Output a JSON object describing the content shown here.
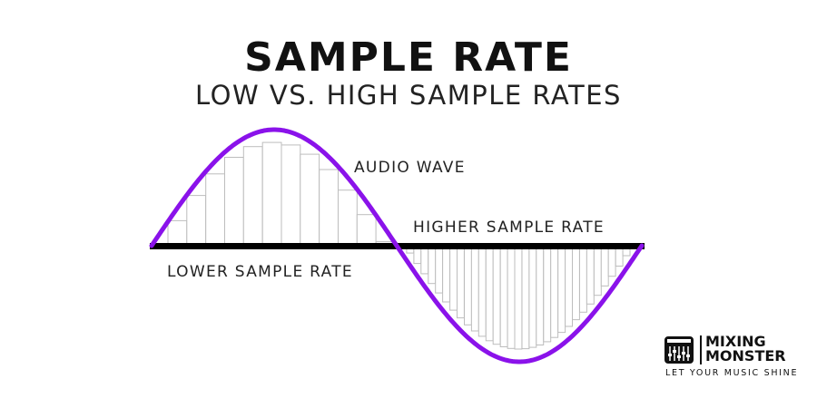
{
  "title": "SAMPLE RATE",
  "subtitle": "LOW VS. HIGH SAMPLE RATES",
  "labels": {
    "audio_wave": "AUDIO WAVE",
    "higher_sample_rate": "HIGHER SAMPLE RATE",
    "lower_sample_rate": "LOWER SAMPLE RATE"
  },
  "colors": {
    "wave": "#8a12ea",
    "axis": "#000000",
    "bars": "#bdbdbd"
  },
  "diagram": {
    "low_rate_samples": 12,
    "high_rate_samples": 33
  },
  "logo": {
    "name_line1": "MIXING",
    "name_line2": "MONSTER",
    "tagline": "LET YOUR MUSIC SHINE",
    "icon": "mixer-faders-icon"
  }
}
